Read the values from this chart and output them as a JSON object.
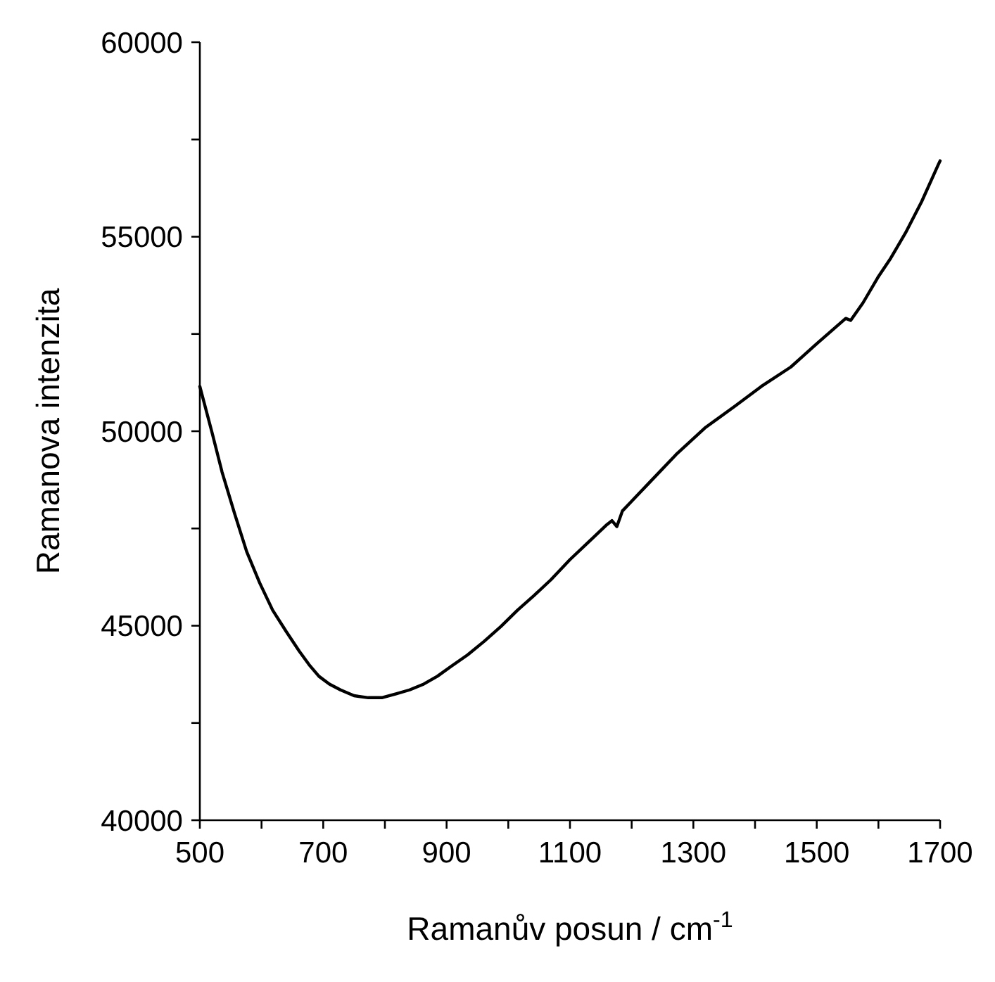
{
  "chart_data": {
    "type": "line",
    "xlabel": "Ramanův posun / cm$^{-1}$",
    "ylabel": "Ramanova intenzita",
    "x": [
      500,
      520,
      536,
      556,
      576,
      597,
      618,
      640,
      661,
      677,
      693,
      710,
      728,
      750,
      773,
      795,
      818,
      840,
      863,
      885,
      907,
      934,
      961,
      988,
      1015,
      1042,
      1069,
      1100,
      1130,
      1160,
      1168,
      1176,
      1185,
      1200,
      1230,
      1272,
      1320,
      1368,
      1410,
      1458,
      1500,
      1547,
      1555,
      1575,
      1599,
      1620,
      1644,
      1670,
      1697,
      1700
    ],
    "series": [
      {
        "color": "#000000",
        "values": [
          51150,
          49950,
          48950,
          47900,
          46900,
          46100,
          45400,
          44850,
          44350,
          44000,
          43700,
          43500,
          43350,
          43200,
          43150,
          43150,
          43250,
          43350,
          43500,
          43700,
          43950,
          44250,
          44600,
          44980,
          45400,
          45780,
          46180,
          46700,
          47150,
          47600,
          47700,
          47550,
          47950,
          48200,
          48700,
          49400,
          50100,
          50650,
          51150,
          51650,
          52250,
          52900,
          52850,
          53300,
          53950,
          54450,
          55100,
          55900,
          56850,
          56950
        ]
      }
    ],
    "xlim": [
      500,
      1700
    ],
    "xticks": [
      500,
      {
        "value": 600,
        "label": null
      },
      700,
      {
        "value": 800,
        "label": null
      },
      900,
      {
        "value": 1000,
        "label": null
      },
      1100,
      {
        "value": 1200,
        "label": null
      },
      1300,
      {
        "value": 1400,
        "label": null
      },
      1500,
      {
        "value": 1600,
        "label": null
      },
      1700
    ],
    "ylim": [
      40000,
      60000
    ],
    "yticks": [
      40000,
      {
        "value": 42500,
        "label": null
      },
      45000,
      {
        "value": 47500,
        "label": null
      },
      50000,
      {
        "value": 52500,
        "label": null
      },
      55000,
      {
        "value": 57500,
        "label": null
      },
      60000
    ],
    "grid": false,
    "marker": "none",
    "line_style": "solid"
  }
}
